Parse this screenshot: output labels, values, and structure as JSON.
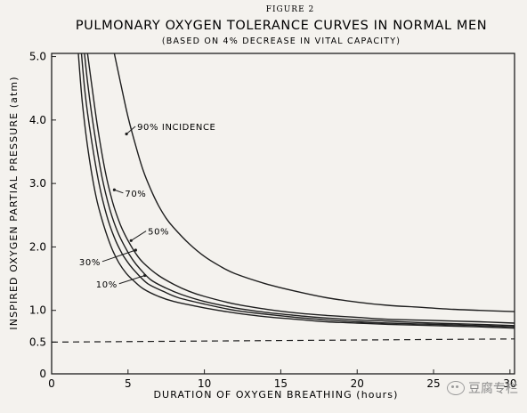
{
  "figure_label": "FIGURE 2",
  "watermark": "豆腐专栏",
  "chart_data": {
    "type": "line",
    "title": "PULMONARY OXYGEN TOLERANCE CURVES IN NORMAL MEN",
    "subtitle": "(BASED ON 4% DECREASE IN VITAL CAPACITY)",
    "xlabel": "DURATION OF OXYGEN BREATHING (hours)",
    "ylabel": "INSPIRED OXYGEN PARTIAL PRESSURE (atm)",
    "xlim": [
      0,
      30.3
    ],
    "ylim": [
      0,
      5.05
    ],
    "x_ticks": [
      0,
      5,
      10,
      15,
      20,
      25,
      30
    ],
    "y_ticks": [
      {
        "value": 0,
        "label": "0"
      },
      {
        "value": 0.5,
        "label": "0.5"
      },
      {
        "value": 1.0,
        "label": "1.0"
      },
      {
        "value": 2.0,
        "label": "2.0"
      },
      {
        "value": 3.0,
        "label": "3.0"
      },
      {
        "value": 4.0,
        "label": "4.0"
      },
      {
        "value": 5.0,
        "label": "5.0"
      }
    ],
    "grid": false,
    "line_color": "#1e1e1e",
    "series": [
      {
        "name": "90% INCIDENCE",
        "label_pos": [
          5.6,
          3.9
        ],
        "arrow_to": [
          4.9,
          3.78
        ],
        "x": [
          4.1,
          4.5,
          5,
          5.5,
          6,
          6.5,
          7,
          7.5,
          8,
          9,
          10,
          11,
          12,
          14,
          16,
          18,
          20,
          22,
          24,
          26,
          28,
          30.3
        ],
        "y": [
          5.05,
          4.6,
          4.05,
          3.6,
          3.2,
          2.9,
          2.65,
          2.45,
          2.3,
          2.05,
          1.85,
          1.7,
          1.58,
          1.42,
          1.3,
          1.2,
          1.13,
          1.08,
          1.05,
          1.02,
          1.0,
          0.98
        ]
      },
      {
        "name": "70%",
        "label_pos": [
          4.8,
          2.85
        ],
        "arrow_to": [
          4.1,
          2.9
        ],
        "x": [
          2.35,
          2.6,
          3,
          3.5,
          4,
          4.5,
          5,
          5.5,
          6,
          7,
          8,
          9,
          10,
          12,
          14,
          16,
          18,
          20,
          22,
          25,
          28,
          30.3
        ],
        "y": [
          5.05,
          4.6,
          3.9,
          3.2,
          2.7,
          2.35,
          2.1,
          1.9,
          1.75,
          1.55,
          1.41,
          1.3,
          1.22,
          1.1,
          1.02,
          0.96,
          0.92,
          0.89,
          0.86,
          0.84,
          0.82,
          0.8
        ]
      },
      {
        "name": "50%",
        "label_pos": [
          6.3,
          2.25
        ],
        "arrow_to": [
          5.2,
          2.1
        ],
        "x": [
          2.15,
          2.4,
          2.8,
          3.3,
          3.8,
          4.3,
          4.8,
          5.3,
          5.8,
          6.5,
          7.5,
          8.5,
          10,
          12,
          14,
          16,
          18,
          20,
          22,
          25,
          28,
          30.3
        ],
        "y": [
          5.05,
          4.5,
          3.8,
          3.1,
          2.6,
          2.25,
          2.0,
          1.8,
          1.65,
          1.48,
          1.35,
          1.25,
          1.14,
          1.04,
          0.97,
          0.92,
          0.88,
          0.85,
          0.83,
          0.8,
          0.78,
          0.76
        ]
      },
      {
        "name": "30%",
        "label_pos": [
          1.8,
          1.77
        ],
        "arrow_to": [
          5.5,
          1.95
        ],
        "x": [
          1.95,
          2.2,
          2.6,
          3.1,
          3.6,
          4.1,
          4.6,
          5.1,
          5.6,
          6.3,
          7.3,
          8.3,
          10,
          12,
          14,
          16,
          18,
          20,
          22,
          25,
          28,
          30.3
        ],
        "y": [
          5.05,
          4.4,
          3.7,
          3.0,
          2.5,
          2.15,
          1.9,
          1.72,
          1.58,
          1.42,
          1.3,
          1.2,
          1.1,
          1.0,
          0.94,
          0.89,
          0.85,
          0.82,
          0.8,
          0.78,
          0.76,
          0.74
        ]
      },
      {
        "name": "10%",
        "label_pos": [
          2.9,
          1.42
        ],
        "arrow_to": [
          6.1,
          1.55
        ],
        "x": [
          1.75,
          2.0,
          2.4,
          2.9,
          3.4,
          3.9,
          4.4,
          4.9,
          5.4,
          6.0,
          7.0,
          8.0,
          10,
          12,
          14,
          16,
          18,
          20,
          22,
          25,
          28,
          30.3
        ],
        "y": [
          5.05,
          4.3,
          3.5,
          2.8,
          2.35,
          2.0,
          1.75,
          1.58,
          1.46,
          1.34,
          1.22,
          1.14,
          1.04,
          0.96,
          0.9,
          0.86,
          0.82,
          0.8,
          0.78,
          0.76,
          0.74,
          0.72
        ]
      }
    ],
    "reference_lines": [
      {
        "type": "dashed",
        "x": [
          0,
          30.3
        ],
        "y": [
          0.5,
          0.55
        ]
      }
    ]
  }
}
